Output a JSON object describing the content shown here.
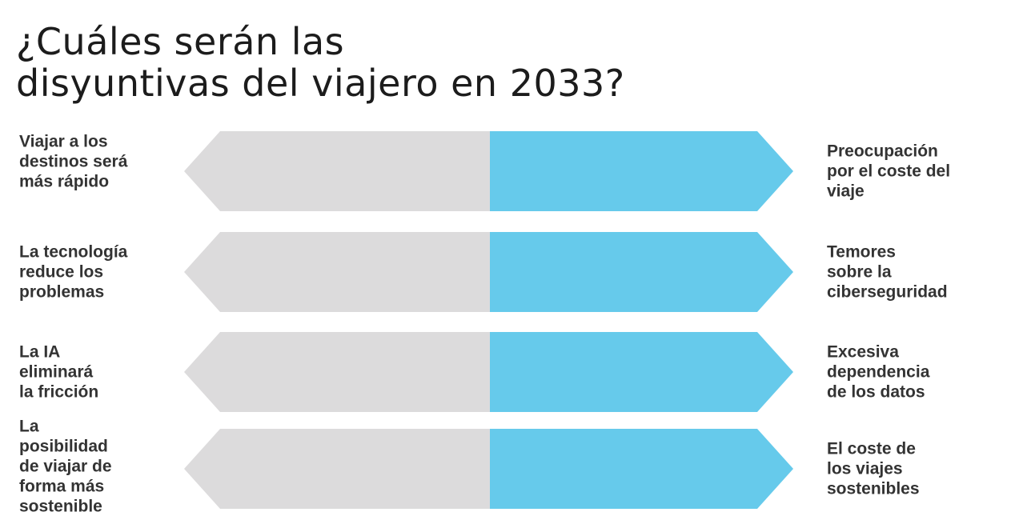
{
  "title": {
    "line1": "¿Cuáles serán las",
    "line2": "disyuntivas del viajero en 2033?"
  },
  "colors": {
    "left_arrow": "#dcdbdc",
    "right_arrow": "#66caeb",
    "text": "#333333"
  },
  "rows": [
    {
      "left": "Viajar a los\ndestinos será\nmás rápido",
      "right": "Preocupación\npor el coste del\nviaje"
    },
    {
      "left": "La tecnología\nreduce los\nproblemas",
      "right": "Temores\nsobre la\nciberseguridad"
    },
    {
      "left": "La IA\neliminará\nla fricción",
      "right": "Excesiva\ndependencia\nde los datos"
    },
    {
      "left": "La\nposibilidad\nde viajar de\nforma más\nsostenible",
      "right": "El coste de\nlos viajes\nsostenibles"
    }
  ]
}
